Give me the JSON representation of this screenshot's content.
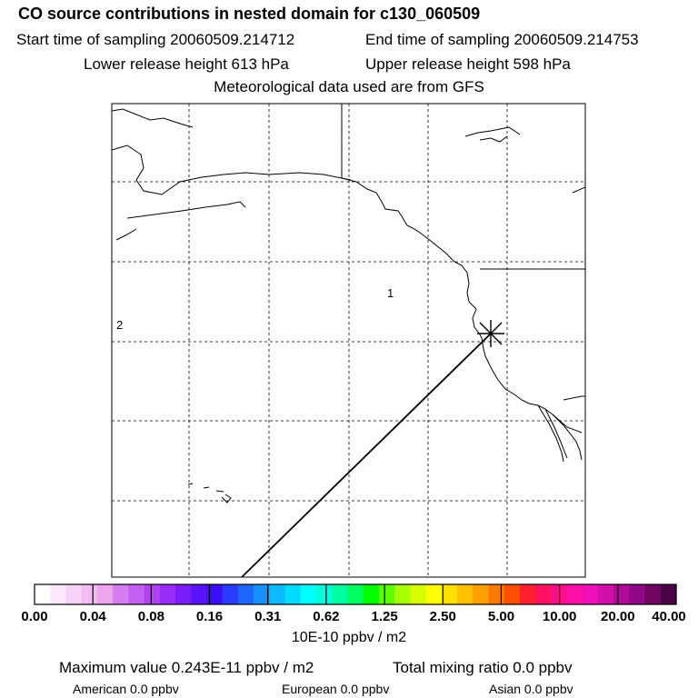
{
  "header": {
    "title": "CO  source contributions in nested domain for c130_060509",
    "start_time": "Start time of sampling 20060509.214712",
    "end_time": "End time of sampling 20060509.214753",
    "lower_height": "Lower release height  613 hPa",
    "upper_height": "Upper release height  598 hPa",
    "met_data": "Meteorological data used are from GFS"
  },
  "map": {
    "region_labels": [
      "1",
      "2"
    ],
    "receptor_marker": "asterisk-icon",
    "line_color": "#000000"
  },
  "colorbar": {
    "colors": [
      "#ffffff",
      "#fbe8fb",
      "#f7d2f7",
      "#f2bef2",
      "#eba6ee",
      "#d77cf0",
      "#c35ff2",
      "#b043f5",
      "#9b2cf7",
      "#7a1ef9",
      "#5a14fb",
      "#3a10fc",
      "#2a3cff",
      "#1e66ff",
      "#1490ff",
      "#0bbaff",
      "#00dcff",
      "#00ffff",
      "#00ffd8",
      "#00ffa0",
      "#00ff60",
      "#00ff00",
      "#60ff00",
      "#a8ff00",
      "#d8ff00",
      "#ffff00",
      "#ffe000",
      "#ffc000",
      "#ffa000",
      "#ff7a00",
      "#ff5000",
      "#ff2030",
      "#ff1060",
      "#ff1088",
      "#ff10a8",
      "#f010b8",
      "#d010a8",
      "#b00a98",
      "#900888",
      "#700660",
      "#4a0448"
    ],
    "tick_labels": [
      "0.00",
      "0.04",
      "0.08",
      "0.16",
      "0.31",
      "0.62",
      "1.25",
      "2.50",
      "5.00",
      "10.00",
      "20.00",
      "40.00"
    ],
    "units": "10E-10 ppbv / m2"
  },
  "stats": {
    "max_value": "Maximum value  0.243E-11 ppbv / m2",
    "total_mixing": "Total mixing ratio      0.0 ppbv",
    "american": "American      0.0 ppbv",
    "european": "European      0.0 ppbv",
    "asian": "Asian      0.0 ppbv"
  }
}
